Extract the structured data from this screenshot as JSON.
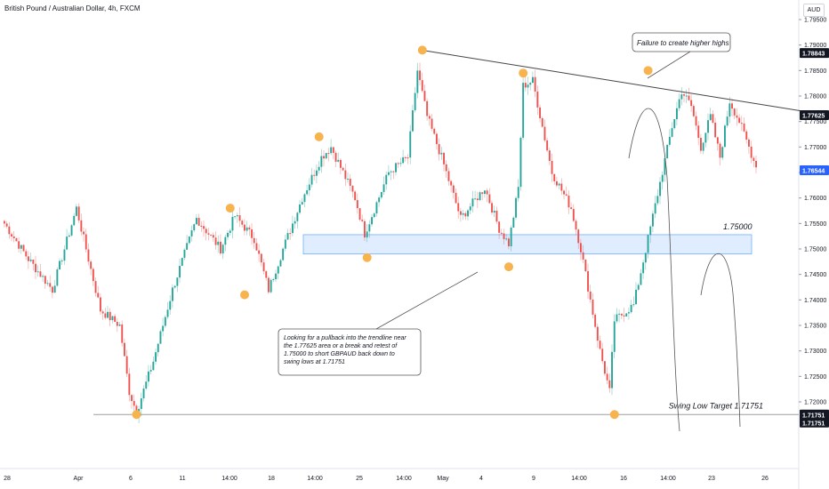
{
  "header": {
    "title": "British Pound / Australian Dollar, 4h, FXCM",
    "currency": "AUD"
  },
  "colors": {
    "up": "#26a69a",
    "down": "#ef5350",
    "zone_fill": "#dbeafe",
    "zone_border": "#60a5fa",
    "pivot": "#f6b34e",
    "current_price": "#2962ff",
    "trendline": "#444444"
  },
  "chart_data": {
    "type": "candlestick",
    "y_scale": {
      "min": 1.71,
      "max": 1.8
    },
    "y_ticks": [
      "1.79500",
      "1.79000",
      "1.78500",
      "1.78000",
      "1.77500",
      "1.77000",
      "1.76500",
      "1.76000",
      "1.75500",
      "1.75000",
      "1.74500",
      "1.74000",
      "1.73500",
      "1.73000",
      "1.72500",
      "1.72000"
    ],
    "x_ticks": [
      "28",
      "Apr",
      "6",
      "11",
      "14:00",
      "18",
      "14:00",
      "25",
      "14:00",
      "May",
      "4",
      "9",
      "14:00",
      "16",
      "14:00",
      "23",
      "26"
    ],
    "price_labels": [
      {
        "text": "1.78843",
        "value": 1.78843,
        "style": "dark"
      },
      {
        "text": "1.77625",
        "value": 1.77625,
        "style": "dark"
      },
      {
        "text": "1.76544",
        "value": 1.76544,
        "style": "current"
      },
      {
        "text": "1.71751",
        "value": 1.71751,
        "style": "dark"
      },
      {
        "text": "1.71751",
        "value": 1.71751,
        "style": "dark"
      }
    ],
    "waypoints": [
      [
        0,
        1.755
      ],
      [
        10,
        1.748
      ],
      [
        20,
        1.742
      ],
      [
        25,
        1.75
      ],
      [
        30,
        1.758
      ],
      [
        40,
        1.738
      ],
      [
        48,
        1.735
      ],
      [
        52,
        1.722
      ],
      [
        55,
        1.718
      ],
      [
        62,
        1.728
      ],
      [
        70,
        1.742
      ],
      [
        80,
        1.756
      ],
      [
        90,
        1.75
      ],
      [
        96,
        1.7565
      ],
      [
        104,
        1.752
      ],
      [
        110,
        1.742
      ],
      [
        116,
        1.75
      ],
      [
        124,
        1.76
      ],
      [
        132,
        1.768
      ],
      [
        136,
        1.77
      ],
      [
        146,
        1.76
      ],
      [
        150,
        1.753
      ],
      [
        160,
        1.765
      ],
      [
        168,
        1.768
      ],
      [
        172,
        1.785
      ],
      [
        176,
        1.776
      ],
      [
        182,
        1.768
      ],
      [
        190,
        1.756
      ],
      [
        200,
        1.762
      ],
      [
        206,
        1.754
      ],
      [
        210,
        1.751
      ],
      [
        214,
        1.762
      ],
      [
        216,
        1.782
      ],
      [
        220,
        1.783
      ],
      [
        228,
        1.765
      ],
      [
        236,
        1.758
      ],
      [
        240,
        1.75
      ],
      [
        248,
        1.73
      ],
      [
        252,
        1.722
      ],
      [
        254,
        1.736
      ],
      [
        262,
        1.739
      ],
      [
        268,
        1.752
      ],
      [
        278,
        1.774
      ],
      [
        282,
        1.781
      ],
      [
        286,
        1.778
      ],
      [
        290,
        1.77
      ],
      [
        294,
        1.776
      ],
      [
        298,
        1.768
      ],
      [
        302,
        1.779
      ],
      [
        306,
        1.775
      ],
      [
        310,
        1.77
      ],
      [
        313,
        1.766
      ]
    ],
    "zone": {
      "top": 1.7528,
      "bottom": 1.749,
      "label": "1.75000"
    },
    "trendline": {
      "start": [
        174,
        1.789
      ],
      "end": [
        336,
        1.776
      ]
    },
    "pivots": [
      [
        55,
        1.71751
      ],
      [
        94,
        1.758
      ],
      [
        100,
        1.741
      ],
      [
        131,
        1.772
      ],
      [
        151,
        1.7483
      ],
      [
        174,
        1.789
      ],
      [
        210,
        1.7465
      ],
      [
        216,
        1.7845
      ],
      [
        254,
        1.71751
      ],
      [
        268,
        1.785
      ]
    ],
    "swing_low": {
      "value": 1.71751,
      "label": "Swing Low Target  1.71751"
    },
    "annotations": [
      {
        "text": "Failure to create higher highs",
        "lines": [
          "Failure to create higher highs"
        ]
      },
      {
        "text": "Looking for a pullback into the trendline near the 1.77625 area or a break and retest of 1.75000 to short GBPAUD back down to swing lows at 1.71751",
        "lines": [
          "Looking for a pullback into the trendline near",
          "the 1.77625 area or a break and retest of",
          "1.75000 to short GBPAUD back down to",
          "swing lows at 1.71751"
        ]
      }
    ]
  }
}
